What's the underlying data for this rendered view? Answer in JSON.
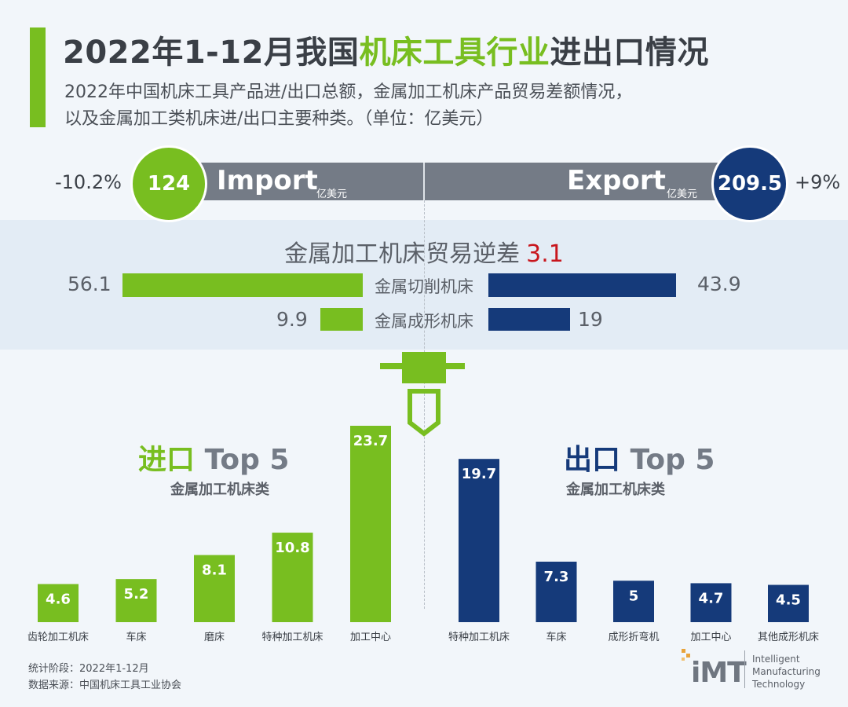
{
  "header": {
    "title_prefix": "2022年1-12月我国",
    "title_highlight": "机床工具行业",
    "title_suffix": "进出口情况",
    "subtitle_1": "2022年中国机床工具产品进/出口总额，金属加工机床产品贸易差额情况，",
    "subtitle_2": "以及金属加工类机床进/出口主要种类。（单位：亿美元）"
  },
  "summary": {
    "import_pct": "-10.2%",
    "import_value": "124",
    "import_label": "Import",
    "import_unit": "亿美元",
    "export_label": "Export",
    "export_unit": "亿美元",
    "export_value": "209.5",
    "export_pct": "+9%"
  },
  "deficit": {
    "title": "金属加工机床贸易逆差",
    "value": "3.1",
    "rows": [
      {
        "category": "金属切削机床",
        "import": 56.1,
        "export": 43.9,
        "import_label": "56.1",
        "export_label": "43.9"
      },
      {
        "category": "金属成形机床",
        "import": 9.9,
        "export": 19,
        "import_label": "9.9",
        "export_label": "19"
      }
    ]
  },
  "import_section": {
    "lead": "进口",
    "rest": "Top 5",
    "subtitle": "金属加工机床类"
  },
  "export_section": {
    "lead": "出口",
    "rest": "Top 5",
    "subtitle": "金属加工机床类"
  },
  "chart_data": [
    {
      "type": "bar",
      "title": "进口 Top 5",
      "subtitle": "金属加工机床类",
      "categories": [
        "齿轮加工机床",
        "车床",
        "磨床",
        "特种加工机床",
        "加工中心"
      ],
      "values": [
        4.6,
        5.2,
        8.1,
        10.8,
        23.7
      ],
      "color": "#78be20",
      "ylim": [
        0,
        23.7
      ]
    },
    {
      "type": "bar",
      "title": "出口 Top 5",
      "subtitle": "金属加工机床类",
      "categories": [
        "特种加工机床",
        "车床",
        "成形折弯机",
        "加工中心",
        "其他成形机床"
      ],
      "values": [
        19.7,
        7.3,
        5,
        4.7,
        4.5
      ],
      "color": "#153a7a",
      "ylim": [
        0,
        23.7
      ]
    }
  ],
  "footer": {
    "period": "统计阶段：2022年1-12月",
    "source": "数据来源：中国机床工具工业协会"
  },
  "logo": {
    "mark": "iMT",
    "line_1": "Intelligent",
    "line_2": "Manufacturing",
    "line_3": "Technology"
  },
  "colors": {
    "green": "#78be20",
    "navy": "#153a7a",
    "gray": "#747b86",
    "red": "#c8161d"
  }
}
